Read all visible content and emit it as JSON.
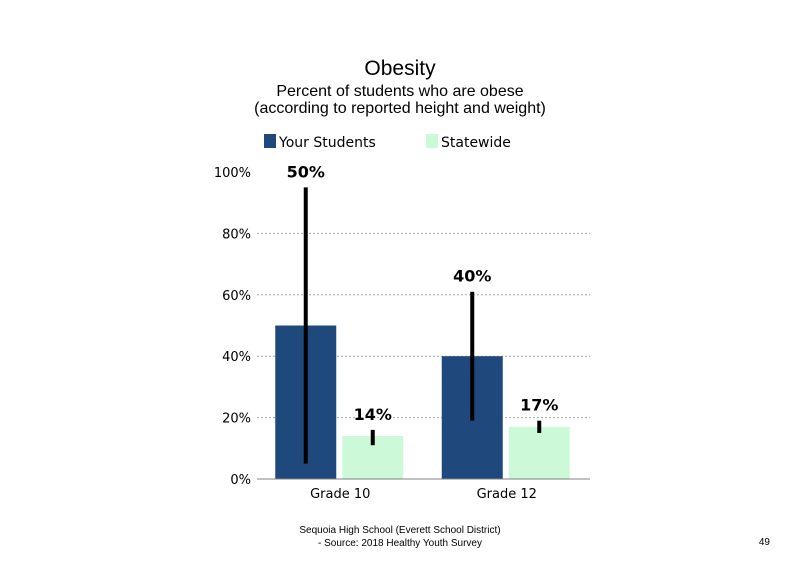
{
  "chart_data": {
    "type": "bar",
    "title": "Obesity",
    "subtitle": [
      "Percent of students who are obese",
      "(according to reported height and weight)"
    ],
    "categories": [
      "Grade 10",
      "Grade 12"
    ],
    "series": [
      {
        "name": "Your Students",
        "color": "#1f497d",
        "values": [
          50,
          40
        ],
        "labels": [
          "50%",
          "40%"
        ],
        "error_low": [
          5,
          19
        ],
        "error_high": [
          95,
          61
        ]
      },
      {
        "name": "Statewide",
        "color": "#ccfad8",
        "values": [
          14,
          17
        ],
        "labels": [
          "14%",
          "17%"
        ],
        "error_low": [
          11,
          15
        ],
        "error_high": [
          16,
          19
        ]
      }
    ],
    "yticks": [
      "0%",
      "20%",
      "40%",
      "60%",
      "80%",
      "100%"
    ],
    "ylim": [
      0,
      100
    ],
    "gridlines": "dotted",
    "legend_position": "top"
  },
  "footer": {
    "line1": "Sequoia High School (Everett School District)",
    "line2": "- Source: 2018 Healthy Youth Survey"
  },
  "page_number": "49"
}
